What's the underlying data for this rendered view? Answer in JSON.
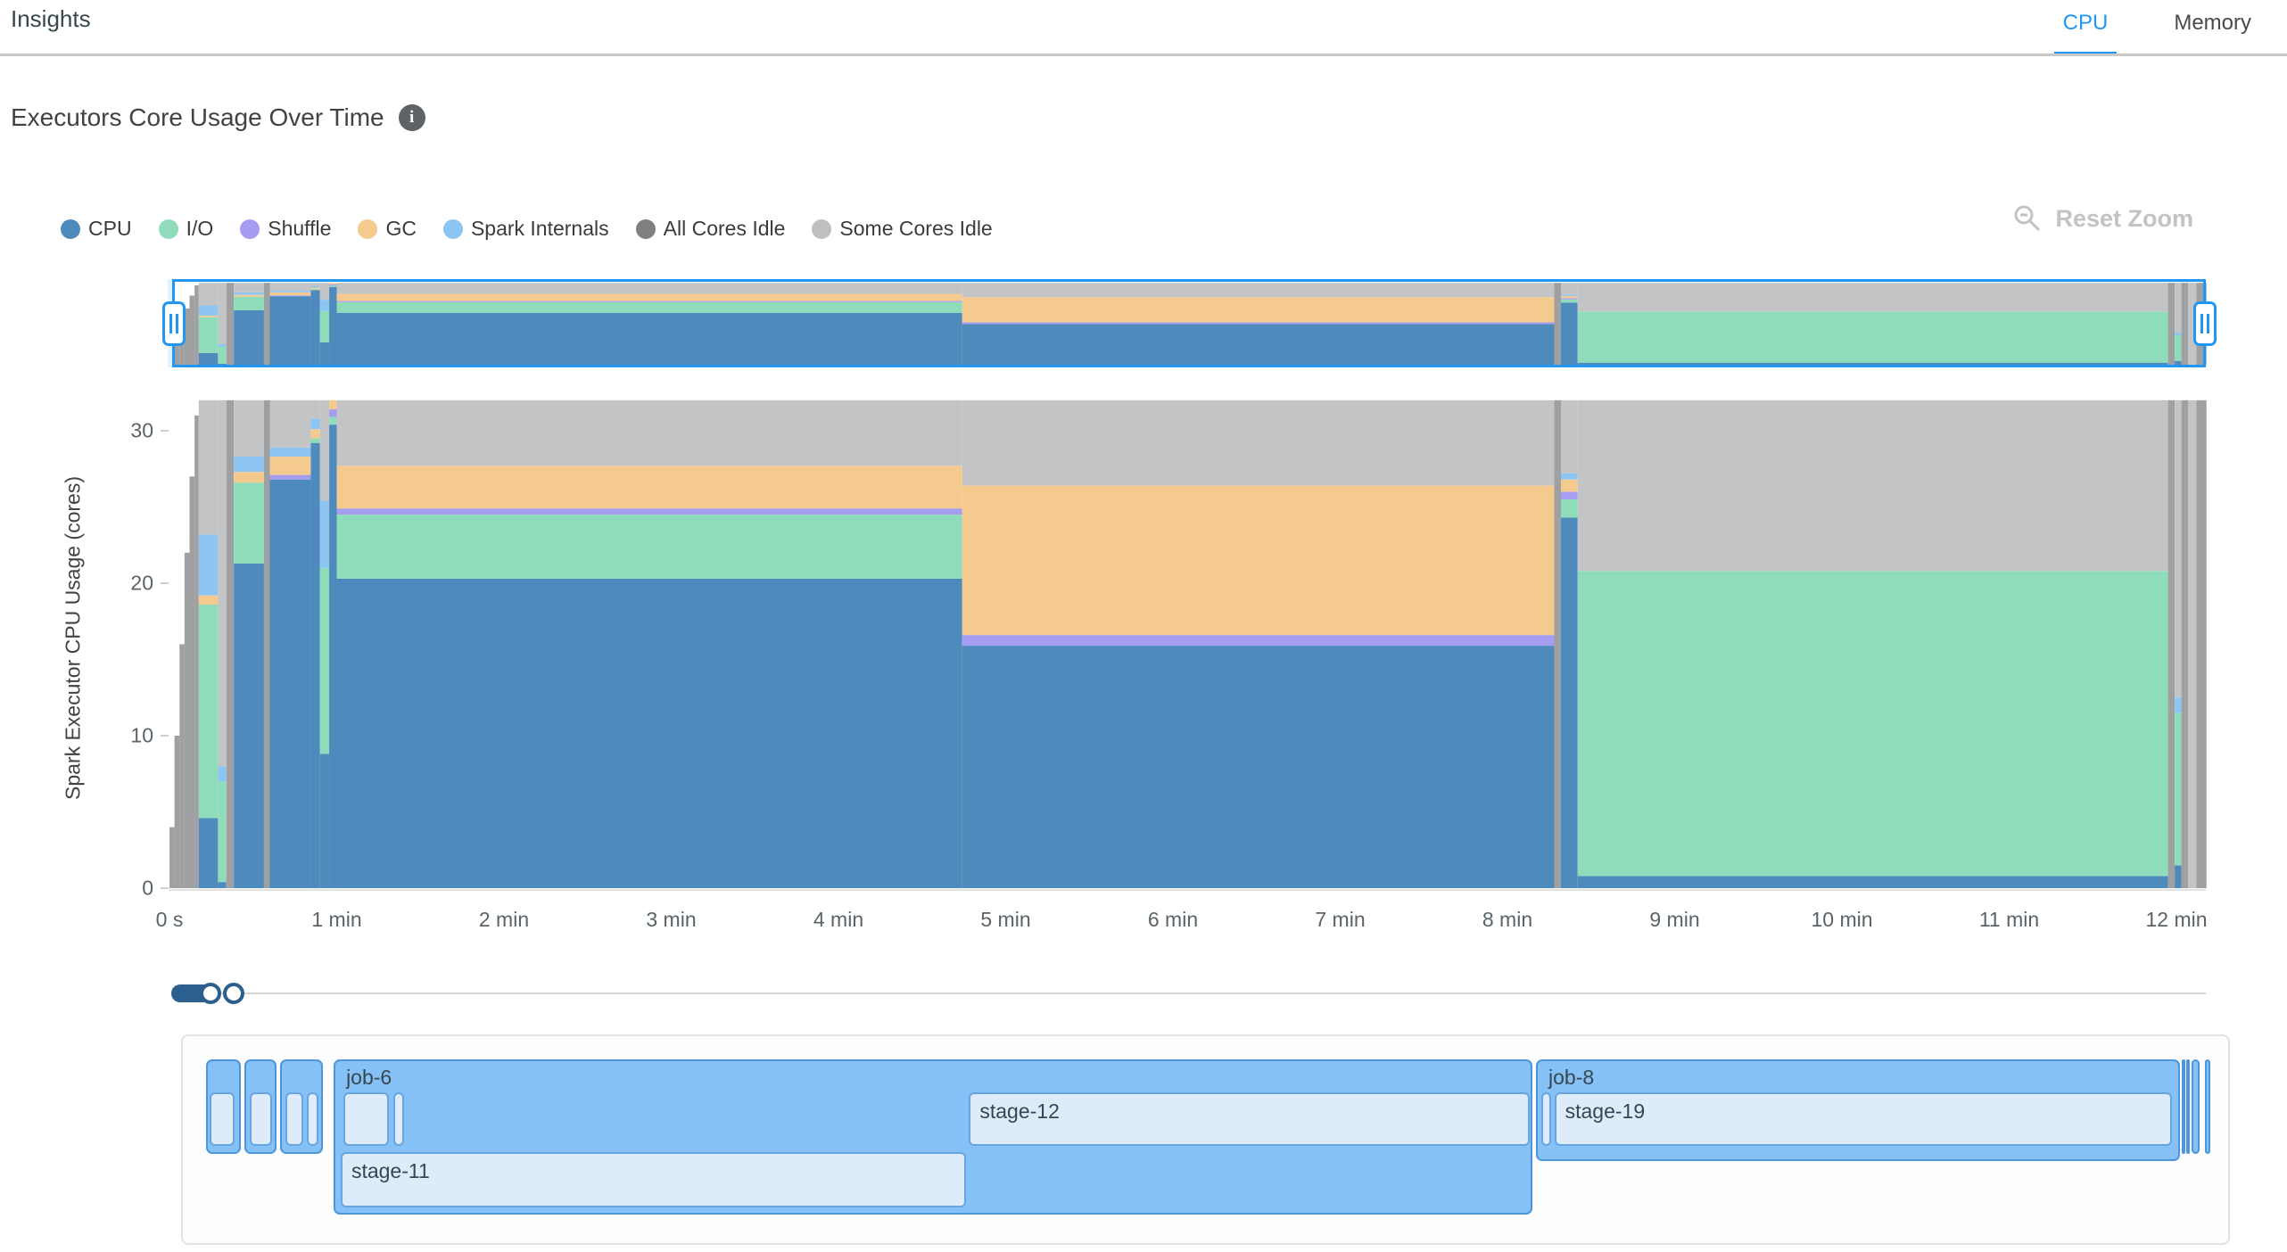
{
  "header": {
    "title": "Insights",
    "tabs": [
      {
        "label": "CPU",
        "active": true
      },
      {
        "label": "Memory",
        "active": false
      }
    ]
  },
  "section": {
    "title": "Executors Core Usage Over Time",
    "info_icon": "i"
  },
  "toolbar": {
    "reset_zoom_label": "Reset Zoom"
  },
  "legend": [
    {
      "key": "cpu",
      "label": "CPU",
      "color": "#4e8abc"
    },
    {
      "key": "io",
      "label": "I/O",
      "color": "#8fdcba"
    },
    {
      "key": "shuffle",
      "label": "Shuffle",
      "color": "#a49df1"
    },
    {
      "key": "gc",
      "label": "GC",
      "color": "#f5ca8e"
    },
    {
      "key": "spark_internals",
      "label": "Spark Internals",
      "color": "#8cc5f2"
    },
    {
      "key": "all_cores_idle",
      "label": "All Cores Idle",
      "color": "#7f7f7f"
    },
    {
      "key": "some_cores_idle",
      "label": "Some Cores Idle",
      "color": "#bfbfbf"
    }
  ],
  "chart_data": {
    "type": "area",
    "stacked": true,
    "title": "Executors Core Usage Over Time",
    "ylabel": "Spark Executor CPU Usage (cores)",
    "xlabel": "",
    "ylim": [
      0,
      32
    ],
    "y_ticks": [
      0,
      10,
      20,
      30
    ],
    "x_ticks": [
      "0 s",
      "1 min",
      "2 min",
      "3 min",
      "4 min",
      "5 min",
      "6 min",
      "7 min",
      "8 min",
      "9 min",
      "10 min",
      "11 min",
      "12 min"
    ],
    "x_tick_minutes": [
      0,
      1,
      2,
      3,
      4,
      5,
      6,
      7,
      8,
      9,
      10,
      11,
      12
    ],
    "x_range_minutes": [
      0,
      12.18
    ],
    "grid": false,
    "legend_position": "top-left",
    "series_order": [
      "cpu",
      "io",
      "shuffle",
      "gc",
      "spark_internals",
      "all_cores_idle",
      "some_cores_idle"
    ],
    "series_colors": {
      "cpu": "#4e8abc",
      "io": "#8fdcba",
      "shuffle": "#a49df1",
      "gc": "#f5ca8e",
      "spark_internals": "#8cc5f2",
      "all_cores_idle": "#9fa0a2",
      "some_cores_idle": "#c3c4c6"
    },
    "segments": [
      {
        "t0": 0.0,
        "t1": 0.03,
        "v": {
          "all_cores_idle": 4
        }
      },
      {
        "t0": 0.03,
        "t1": 0.06,
        "v": {
          "all_cores_idle": 10
        }
      },
      {
        "t0": 0.06,
        "t1": 0.09,
        "v": {
          "all_cores_idle": 16
        }
      },
      {
        "t0": 0.09,
        "t1": 0.12,
        "v": {
          "all_cores_idle": 22
        }
      },
      {
        "t0": 0.12,
        "t1": 0.15,
        "v": {
          "all_cores_idle": 27
        }
      },
      {
        "t0": 0.15,
        "t1": 0.175,
        "v": {
          "all_cores_idle": 31
        }
      },
      {
        "t0": 0.175,
        "t1": 0.29,
        "v": {
          "cpu": 4.6,
          "io": 14,
          "gc": 0.6,
          "spark_internals": 4,
          "some_cores_idle": 8.8
        }
      },
      {
        "t0": 0.29,
        "t1": 0.34,
        "v": {
          "cpu": 0.4,
          "io": 6.6,
          "spark_internals": 1,
          "some_cores_idle": 24
        }
      },
      {
        "t0": 0.34,
        "t1": 0.385,
        "v": {
          "all_cores_idle": 32
        }
      },
      {
        "t0": 0.385,
        "t1": 0.565,
        "v": {
          "cpu": 21.3,
          "io": 5.3,
          "gc": 0.7,
          "spark_internals": 1,
          "some_cores_idle": 3.7
        }
      },
      {
        "t0": 0.565,
        "t1": 0.6,
        "v": {
          "all_cores_idle": 32
        }
      },
      {
        "t0": 0.6,
        "t1": 0.845,
        "v": {
          "cpu": 26.8,
          "shuffle": 0.3,
          "gc": 1.2,
          "spark_internals": 0.6,
          "some_cores_idle": 3.1
        }
      },
      {
        "t0": 0.845,
        "t1": 0.9,
        "v": {
          "cpu": 29.2,
          "io": 0.3,
          "gc": 0.6,
          "spark_internals": 0.7,
          "some_cores_idle": 1.2
        }
      },
      {
        "t0": 0.9,
        "t1": 0.955,
        "v": {
          "cpu": 8.8,
          "io": 12.2,
          "spark_internals": 4.4,
          "some_cores_idle": 6.6
        }
      },
      {
        "t0": 0.955,
        "t1": 1.0,
        "v": {
          "cpu": 30.4,
          "io": 0.5,
          "shuffle": 0.5,
          "gc": 0.6
        }
      },
      {
        "t0": 1.0,
        "t1": 4.74,
        "v": {
          "cpu": 20.3,
          "io": 4.2,
          "shuffle": 0.4,
          "gc": 2.8,
          "some_cores_idle": 4.3
        }
      },
      {
        "t0": 4.74,
        "t1": 8.28,
        "v": {
          "cpu": 15.9,
          "shuffle": 0.7,
          "gc": 9.8,
          "some_cores_idle": 5.6
        }
      },
      {
        "t0": 8.28,
        "t1": 8.32,
        "v": {
          "all_cores_idle": 32
        }
      },
      {
        "t0": 8.32,
        "t1": 8.42,
        "v": {
          "cpu": 24.3,
          "io": 1.2,
          "shuffle": 0.5,
          "gc": 0.8,
          "spark_internals": 0.4,
          "some_cores_idle": 4.8
        }
      },
      {
        "t0": 8.42,
        "t1": 11.95,
        "v": {
          "cpu": 0.8,
          "io": 20,
          "some_cores_idle": 11.2
        }
      },
      {
        "t0": 11.95,
        "t1": 11.99,
        "v": {
          "all_cores_idle": 32
        }
      },
      {
        "t0": 11.99,
        "t1": 12.03,
        "v": {
          "cpu": 1.5,
          "io": 10,
          "spark_internals": 1,
          "some_cores_idle": 19.5
        }
      },
      {
        "t0": 12.03,
        "t1": 12.07,
        "v": {
          "all_cores_idle": 32
        }
      },
      {
        "t0": 12.07,
        "t1": 12.12,
        "v": {
          "some_cores_idle": 32
        }
      },
      {
        "t0": 12.12,
        "t1": 12.18,
        "v": {
          "all_cores_idle": 32
        }
      }
    ]
  },
  "timeline": {
    "jobs": [
      {
        "label": "",
        "t0": 0.208,
        "t1": 0.416,
        "height": "small",
        "stages": [
          {
            "label": "",
            "t0": 0.23,
            "t1": 0.38,
            "row": 1
          }
        ]
      },
      {
        "label": "",
        "t0": 0.437,
        "t1": 0.629,
        "height": "small",
        "stages": [
          {
            "label": "",
            "t0": 0.47,
            "t1": 0.6,
            "row": 1
          }
        ]
      },
      {
        "label": "",
        "t0": 0.651,
        "t1": 0.907,
        "height": "small",
        "stages": [
          {
            "label": "",
            "t0": 0.683,
            "t1": 0.789,
            "row": 1
          },
          {
            "label": "",
            "t0": 0.811,
            "t1": 0.88,
            "row": 1
          }
        ]
      },
      {
        "label": "job-6",
        "t0": 0.971,
        "t1": 8.139,
        "height": "tall",
        "stages": [
          {
            "label": "",
            "t0": 1.03,
            "t1": 1.3,
            "row": 1
          },
          {
            "label": "",
            "t0": 1.33,
            "t1": 1.39,
            "row": 1
          },
          {
            "label": "stage-12",
            "t0": 4.77,
            "t1": 8.12,
            "row": 1
          },
          {
            "label": "stage-11",
            "t0": 1.013,
            "t1": 4.752,
            "row": 2
          }
        ]
      },
      {
        "label": "job-8",
        "t0": 8.16,
        "t1": 12.01,
        "height": "medium",
        "stages": [
          {
            "label": "",
            "t0": 8.19,
            "t1": 8.25,
            "row": 1
          },
          {
            "label": "stage-19",
            "t0": 8.27,
            "t1": 11.96,
            "row": 1
          }
        ]
      },
      {
        "label": "",
        "t0": 12.02,
        "t1": 12.04,
        "height": "small",
        "stages": []
      },
      {
        "label": "",
        "t0": 12.05,
        "t1": 12.07,
        "height": "small",
        "stages": []
      },
      {
        "label": "",
        "t0": 12.08,
        "t1": 12.13,
        "height": "small",
        "stages": []
      },
      {
        "label": "",
        "t0": 12.16,
        "t1": 12.19,
        "height": "small",
        "stages": []
      }
    ]
  }
}
